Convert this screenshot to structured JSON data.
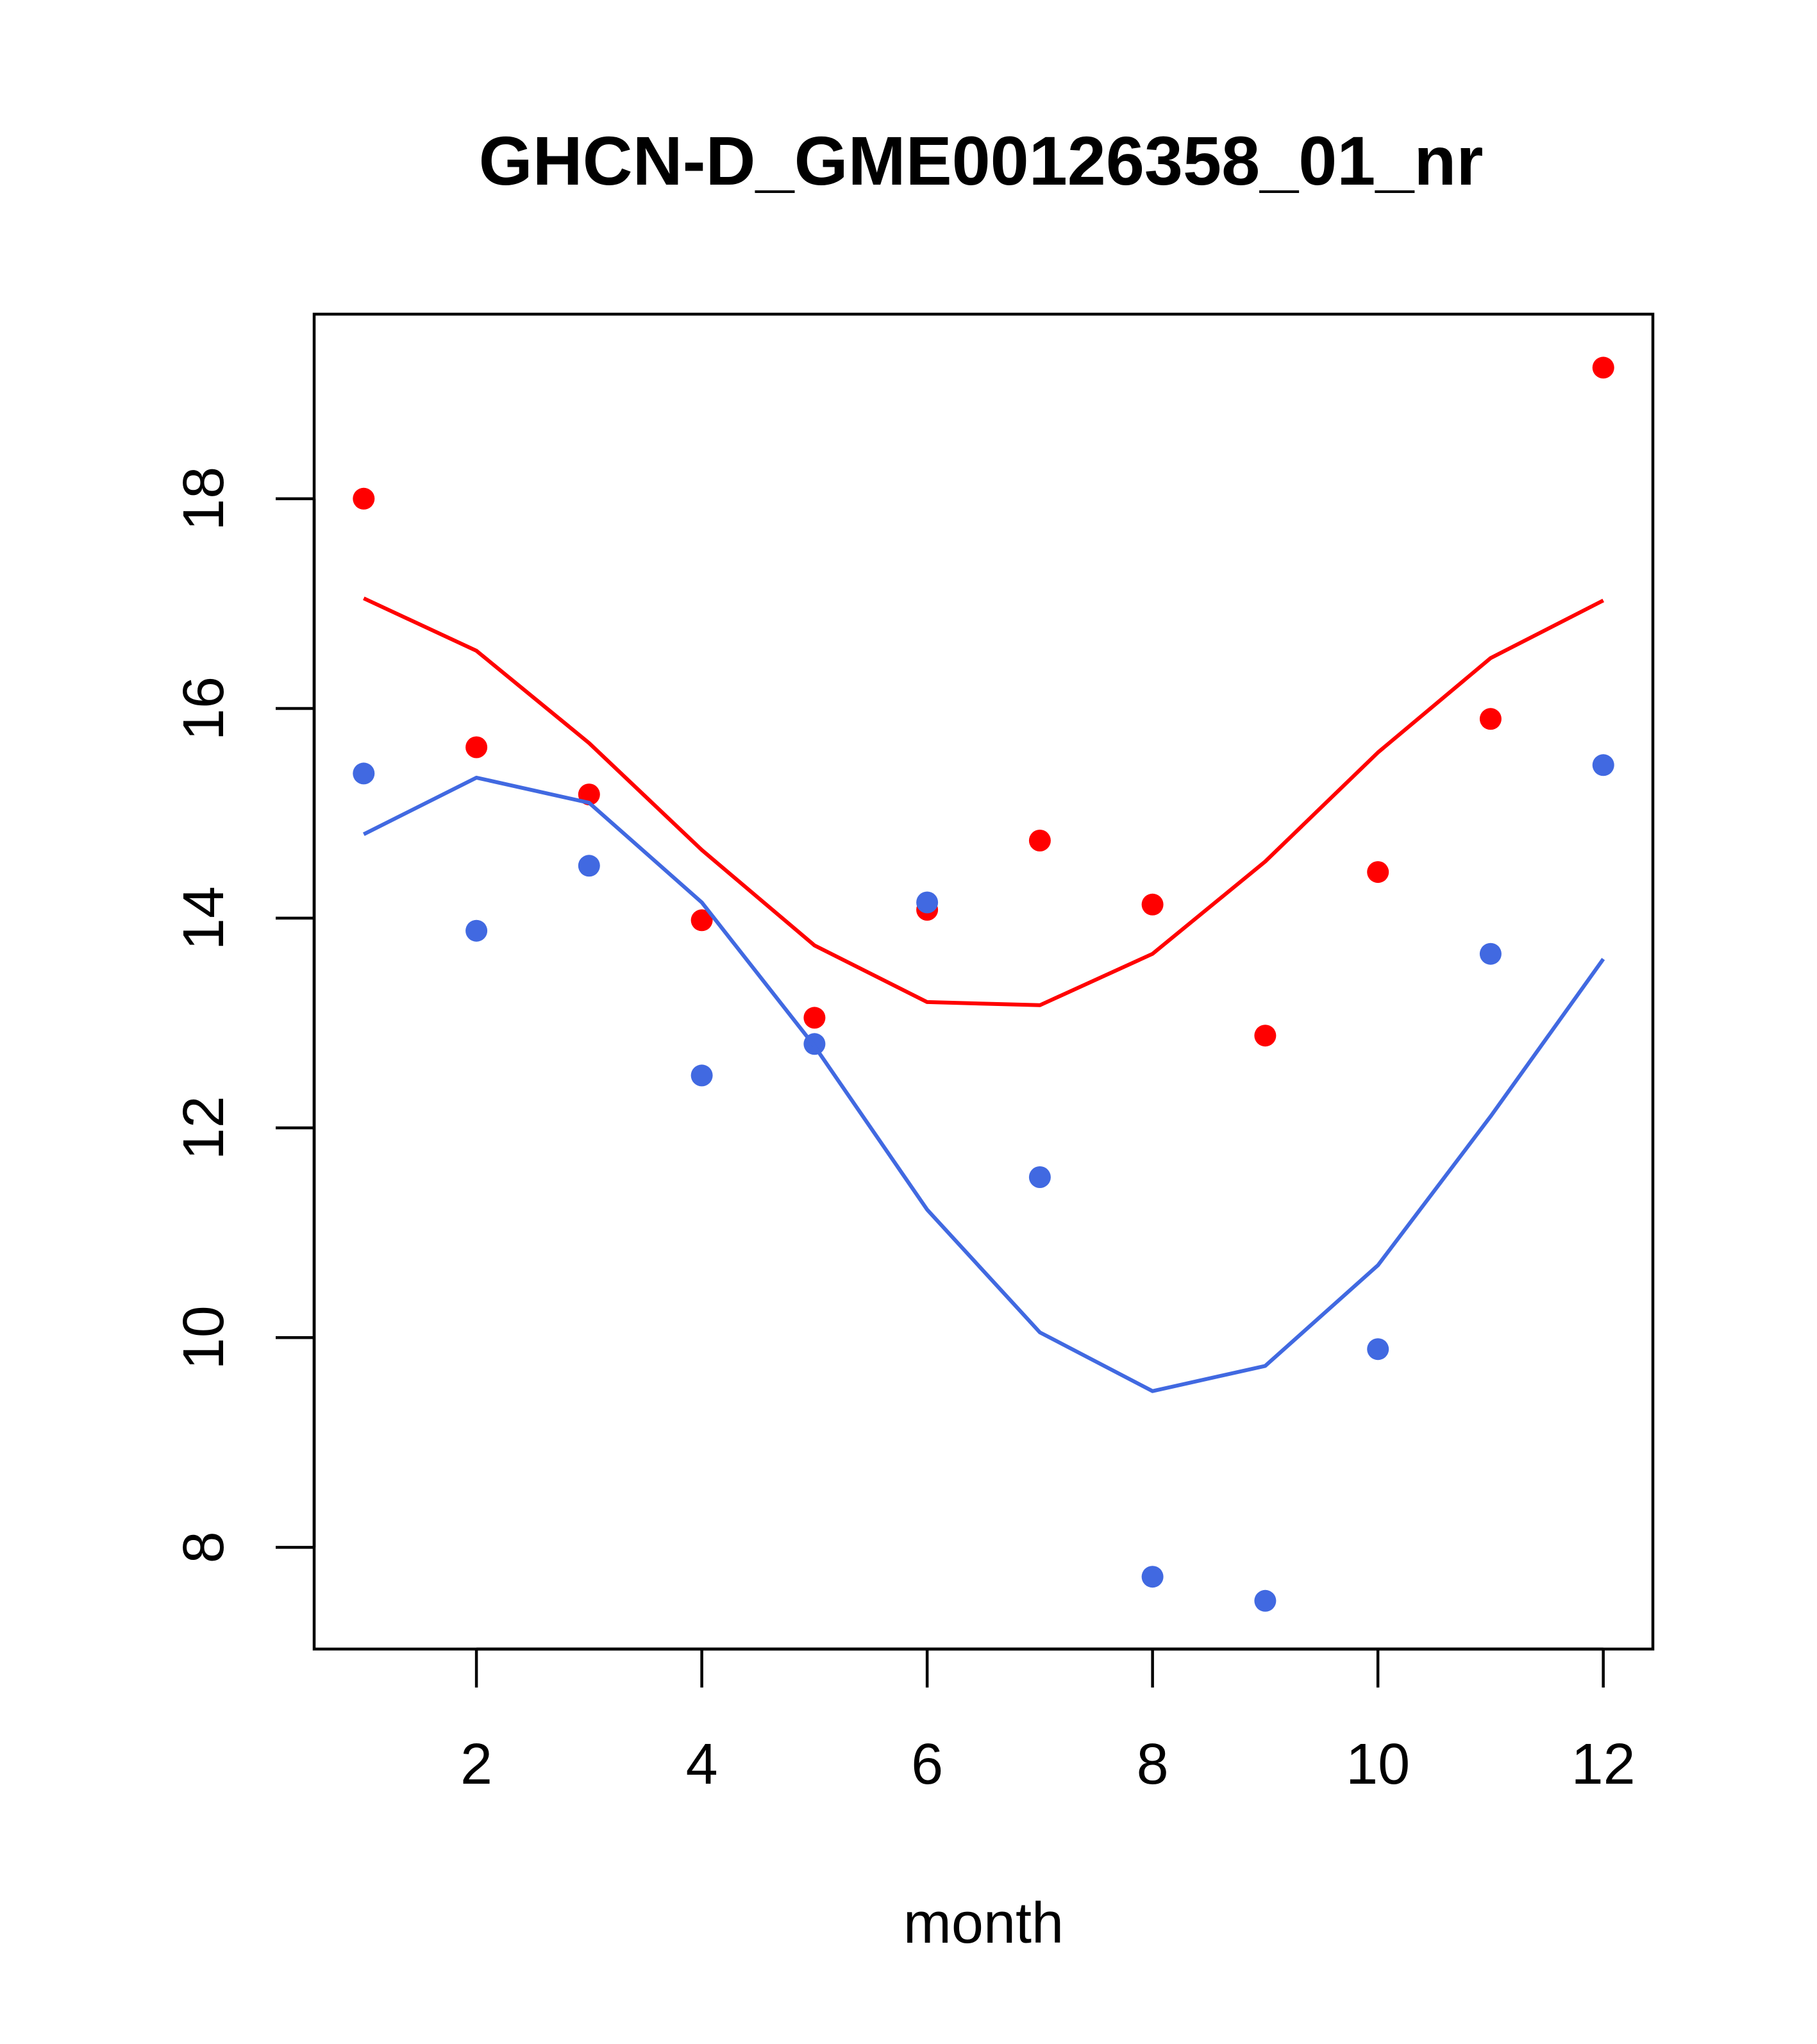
{
  "chart_data": {
    "type": "scatter",
    "title": "GHCN-D_GME00126358_01_nr",
    "xlabel": "month",
    "ylabel": "",
    "xlim": [
      0.56,
      12.44
    ],
    "ylim": [
      7.03,
      19.76
    ],
    "xticks": [
      2,
      4,
      6,
      8,
      10,
      12
    ],
    "yticks": [
      8,
      10,
      12,
      14,
      16,
      18
    ],
    "grid": false,
    "series": [
      {
        "kind": "points",
        "color": "#ff0000",
        "x": [
          1,
          2,
          3,
          4,
          5,
          6,
          7,
          8,
          9,
          10,
          11,
          12
        ],
        "y": [
          18.0,
          15.63,
          15.18,
          13.98,
          13.05,
          14.08,
          14.74,
          14.13,
          12.88,
          14.44,
          15.9,
          19.25
        ]
      },
      {
        "kind": "points",
        "color": "#4169e1",
        "x": [
          1,
          2,
          3,
          4,
          5,
          6,
          7,
          8,
          9,
          10,
          11,
          12
        ],
        "y": [
          15.38,
          13.88,
          14.5,
          12.5,
          12.8,
          14.15,
          11.53,
          7.72,
          7.49,
          9.89,
          13.66,
          15.46
        ]
      },
      {
        "kind": "line",
        "color": "#ff0000",
        "x": [
          1,
          2,
          3,
          4,
          5,
          6,
          7,
          8,
          9,
          10,
          11,
          12
        ],
        "y": [
          17.05,
          16.55,
          15.67,
          14.65,
          13.74,
          13.2,
          13.17,
          13.66,
          14.54,
          15.58,
          16.48,
          17.03
        ]
      },
      {
        "kind": "line",
        "color": "#4169e1",
        "x": [
          1,
          2,
          3,
          4,
          5,
          6,
          7,
          8,
          9,
          10,
          11,
          12
        ],
        "y": [
          14.8,
          15.34,
          15.1,
          14.15,
          12.78,
          11.22,
          10.05,
          9.49,
          9.73,
          10.69,
          12.11,
          13.61
        ]
      }
    ]
  }
}
